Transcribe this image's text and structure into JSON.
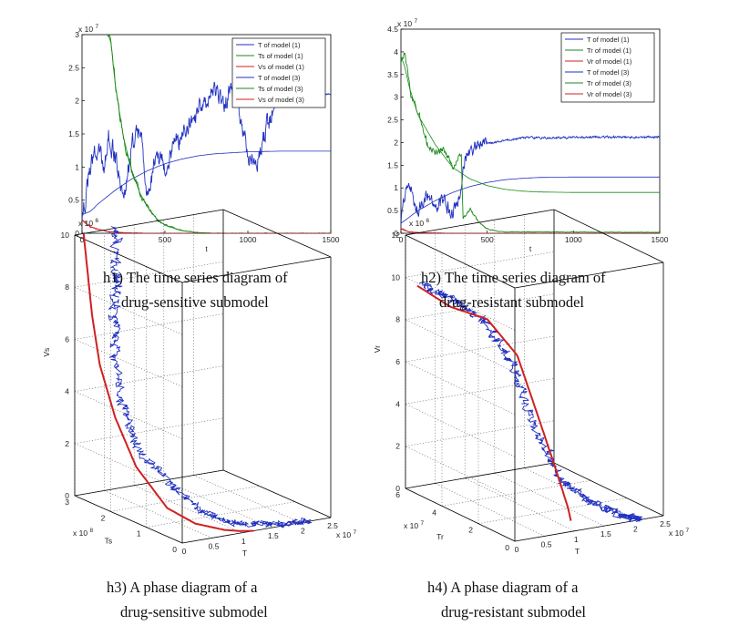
{
  "chart_data": [
    {
      "id": "h1",
      "type": "line",
      "exponent_label": "x 10",
      "exponent_power": "7",
      "xlabel": "t",
      "xlim": [
        0,
        1500
      ],
      "ylim": [
        0,
        3
      ],
      "xticks": [
        "0",
        "500",
        "1000",
        "1500"
      ],
      "yticks": [
        "0",
        "0.5",
        "1",
        "1.5",
        "2",
        "2.5",
        "3"
      ],
      "legend_position": "top-right",
      "legend": [
        "T of model (1)",
        "Ts of model (1)",
        "Vs of model (1)",
        "T of model (3)",
        "Ts of model (3)",
        "Vs of model (3)"
      ],
      "legend_colors": [
        "#2030c0",
        "#1a8a1a",
        "#d02020",
        "#2030c0",
        "#1a8a1a",
        "#d02020"
      ],
      "series": [
        {
          "name": "T of model (1)",
          "color": "#2030c0",
          "stochastic": false,
          "x": [
            0,
            50,
            100,
            200,
            300,
            400,
            500,
            600,
            700,
            800,
            1000,
            1200,
            1500
          ],
          "y": [
            0.28,
            0.33,
            0.45,
            0.65,
            0.82,
            0.95,
            1.05,
            1.12,
            1.17,
            1.2,
            1.23,
            1.24,
            1.24
          ]
        },
        {
          "name": "Ts of model (1)",
          "color": "#1a8a1a",
          "stochastic": false,
          "x": [
            0,
            170,
            200,
            250,
            300,
            350,
            400,
            450,
            500,
            600,
            700,
            800,
            1500
          ],
          "y": [
            3.5,
            3.0,
            2.25,
            1.45,
            0.95,
            0.6,
            0.38,
            0.22,
            0.12,
            0.04,
            0.01,
            0,
            0
          ]
        },
        {
          "name": "Vs of model (1)",
          "color": "#d02020",
          "stochastic": false,
          "x": [
            0,
            25,
            50,
            100,
            150,
            200,
            300,
            400,
            1500
          ],
          "y": [
            0.2,
            0.14,
            0.1,
            0.06,
            0.03,
            0.015,
            0.005,
            0,
            0
          ]
        },
        {
          "name": "T of model (3)",
          "color": "#2030c0",
          "stochastic": true,
          "x": [
            0,
            20,
            50,
            100,
            130,
            160,
            200,
            260,
            300,
            350,
            400,
            450,
            500,
            600,
            700,
            750,
            800,
            850,
            900,
            950,
            1000,
            1050,
            1100,
            1150,
            1200,
            1300,
            1500
          ],
          "y": [
            0.3,
            0.5,
            1.0,
            1.35,
            0.95,
            1.45,
            1.15,
            0.55,
            1.35,
            1.55,
            0.5,
            1.2,
            1.05,
            1.5,
            1.85,
            2.05,
            2.2,
            1.95,
            2.15,
            1.8,
            1.2,
            1.05,
            1.5,
            1.85,
            2.05,
            2.1,
            2.1
          ]
        },
        {
          "name": "Ts of model (3)",
          "color": "#1a8a1a",
          "stochastic": true,
          "x": [
            0,
            170,
            200,
            250,
            300,
            350,
            400,
            450,
            500,
            600,
            700,
            800,
            1500
          ],
          "y": [
            3.5,
            3.0,
            2.28,
            1.42,
            0.97,
            0.58,
            0.4,
            0.2,
            0.13,
            0.04,
            0.01,
            0,
            0
          ]
        },
        {
          "name": "Vs of model (3)",
          "color": "#d02020",
          "stochastic": true,
          "x": [
            0,
            25,
            50,
            100,
            150,
            200,
            300,
            400,
            1500
          ],
          "y": [
            0.21,
            0.15,
            0.1,
            0.06,
            0.03,
            0.015,
            0.005,
            0,
            0
          ]
        }
      ]
    },
    {
      "id": "h2",
      "type": "line",
      "exponent_label": "x 10",
      "exponent_power": "7",
      "xlabel": "t",
      "xlim": [
        0,
        1500
      ],
      "ylim": [
        0,
        4.5
      ],
      "xticks": [
        "0",
        "500",
        "1000",
        "1500"
      ],
      "yticks": [
        "0",
        "0.5",
        "1",
        "1.5",
        "2",
        "2.5",
        "3",
        "3.5",
        "4",
        "4.5"
      ],
      "legend_position": "top-right",
      "legend": [
        "T of model (1)",
        "Tr of model (1)",
        "Vr of model (1)",
        "T of model (3)",
        "Tr of model (3)",
        "Vr of model (3)"
      ],
      "legend_colors": [
        "#2030c0",
        "#1a8a1a",
        "#d02020",
        "#2030c0",
        "#1a8a1a",
        "#d02020"
      ],
      "series": [
        {
          "name": "T of model (1)",
          "color": "#2030c0",
          "stochastic": false,
          "x": [
            0,
            100,
            200,
            300,
            400,
            500,
            600,
            700,
            800,
            1000,
            1500
          ],
          "y": [
            0.22,
            0.5,
            0.72,
            0.9,
            1.03,
            1.12,
            1.18,
            1.21,
            1.23,
            1.24,
            1.24
          ]
        },
        {
          "name": "Tr of model (1)",
          "color": "#1a8a1a",
          "stochastic": false,
          "x": [
            0,
            20,
            50,
            100,
            200,
            300,
            400,
            500,
            600,
            700,
            800,
            1000,
            1500
          ],
          "y": [
            3.9,
            3.7,
            3.2,
            2.6,
            1.95,
            1.45,
            1.2,
            1.05,
            0.97,
            0.93,
            0.91,
            0.9,
            0.9
          ]
        },
        {
          "name": "Vr of model (1)",
          "color": "#d02020",
          "stochastic": false,
          "x": [
            0,
            20,
            50,
            100,
            200,
            300,
            1500
          ],
          "y": [
            0.1,
            0.06,
            0.03,
            0.015,
            0.005,
            0,
            0
          ]
        },
        {
          "name": "T of model (3)",
          "color": "#2030c0",
          "stochastic": true,
          "x": [
            0,
            20,
            50,
            80,
            100,
            150,
            200,
            250,
            300,
            350,
            360,
            400,
            500,
            600,
            700,
            800,
            1000,
            1200,
            1500
          ],
          "y": [
            0.3,
            0.8,
            1.1,
            0.6,
            0.45,
            0.9,
            0.55,
            0.75,
            0.35,
            1.0,
            1.55,
            1.85,
            1.97,
            2.05,
            2.1,
            2.11,
            2.12,
            2.12,
            2.12
          ]
        },
        {
          "name": "Tr of model (3)",
          "color": "#1a8a1a",
          "stochastic": true,
          "x": [
            0,
            20,
            60,
            100,
            150,
            200,
            250,
            300,
            350,
            360,
            400,
            450,
            500,
            550,
            600,
            1500
          ],
          "y": [
            3.8,
            4.0,
            3.0,
            2.7,
            2.0,
            1.75,
            1.85,
            1.5,
            1.7,
            0.3,
            0.55,
            0.25,
            0.1,
            0.05,
            0.03,
            0.02
          ]
        },
        {
          "name": "Vr of model (3)",
          "color": "#d02020",
          "stochastic": true,
          "x": [
            0,
            20,
            50,
            100,
            200,
            300,
            1500
          ],
          "y": [
            0.12,
            0.07,
            0.03,
            0.015,
            0.005,
            0,
            0
          ]
        }
      ]
    },
    {
      "id": "h3",
      "type": "line3d",
      "axis_labels": {
        "x": "T",
        "y": "Ts",
        "z": "Vs"
      },
      "exponents": {
        "x": "x 10",
        "x_power": "7",
        "y": "x 10",
        "y_power": "8",
        "z": "x 10",
        "z_power": "6"
      },
      "xlim": [
        0,
        2.5
      ],
      "ylim": [
        0,
        3
      ],
      "zlim": [
        0,
        10
      ],
      "xticks": [
        "0",
        "0.5",
        "1",
        "1.5",
        "2",
        "2.5"
      ],
      "yticks": [
        "0",
        "1",
        "2",
        "3"
      ],
      "zticks": [
        "0",
        "2",
        "4",
        "6",
        "8",
        "10"
      ],
      "series": [
        {
          "name": "deterministic",
          "color": "#d02020",
          "stochastic": false,
          "x": [
            1.2,
            1.0,
            0.8,
            0.55,
            0.35,
            0.25,
            0.2,
            0.18,
            0.17,
            0.16,
            0.15
          ],
          "y": [
            0.0,
            0.03,
            0.15,
            0.55,
            1.0,
            1.7,
            2.2,
            2.6,
            2.8,
            2.9,
            3.0
          ],
          "z": [
            0.0,
            0.05,
            0.1,
            0.2,
            0.6,
            1.8,
            3.4,
            5.2,
            7.0,
            8.5,
            10.0
          ]
        },
        {
          "name": "stochastic",
          "color": "#2030c0",
          "stochastic": true,
          "x": [
            2.2,
            1.8,
            1.4,
            1.0,
            0.7,
            0.5,
            0.3,
            0.25,
            0.3,
            0.45,
            0.6,
            0.7
          ],
          "y": [
            0.0,
            0.03,
            0.1,
            0.3,
            0.7,
            1.2,
            1.8,
            2.1,
            2.4,
            2.6,
            2.8,
            3.0
          ],
          "z": [
            0.0,
            0.05,
            0.1,
            0.2,
            0.6,
            1.4,
            2.5,
            4.0,
            6.0,
            7.5,
            8.5,
            10.0
          ]
        }
      ]
    },
    {
      "id": "h4",
      "type": "line3d",
      "axis_labels": {
        "x": "T",
        "y": "Tr",
        "z": "Vr"
      },
      "exponents": {
        "x": "x 10",
        "x_power": "7",
        "y": "x 10",
        "y_power": "7",
        "z": "x 10",
        "z_power": "6"
      },
      "xlim": [
        0,
        2.5
      ],
      "ylim": [
        0,
        6
      ],
      "zlim": [
        0,
        12
      ],
      "xticks": [
        "0",
        "0.5",
        "1",
        "1.5",
        "2",
        "2.5"
      ],
      "yticks": [
        "0",
        "2",
        "4",
        "6"
      ],
      "zticks": [
        "0",
        "2",
        "4",
        "6",
        "8",
        "10",
        "12"
      ],
      "series": [
        {
          "name": "deterministic",
          "color": "#d02020",
          "stochastic": false,
          "x": [
            0.2,
            0.45,
            0.7,
            0.9,
            1.05,
            1.15,
            1.2,
            1.22
          ],
          "y": [
            6.0,
            5.0,
            3.8,
            2.8,
            2.0,
            1.4,
            1.0,
            0.9
          ],
          "z": [
            9.5,
            8.8,
            8.6,
            7.2,
            4.2,
            2.0,
            0.6,
            0.0
          ]
        },
        {
          "name": "stochastic",
          "color": "#2030c0",
          "stochastic": true,
          "x": [
            0.3,
            0.55,
            0.8,
            0.95,
            1.1,
            1.3,
            1.6,
            1.9,
            2.1
          ],
          "y": [
            6.0,
            5.2,
            4.2,
            3.2,
            2.4,
            1.6,
            0.9,
            0.3,
            0.0
          ],
          "z": [
            9.5,
            9.0,
            8.2,
            6.5,
            3.5,
            1.5,
            0.6,
            0.2,
            0.0
          ]
        }
      ]
    }
  ],
  "captions": {
    "h1_line1": "h1) The time series diagram of",
    "h1_line2": "drug-sensitive submodel",
    "h2_line1": "h2) The time series diagram of",
    "h2_line2": "drug-resistant submodel",
    "h3_line1": "h3) A phase diagram of a",
    "h3_line2": "drug-sensitive submodel",
    "h4_line1": "h4) A phase diagram of a",
    "h4_line2": "drug-resistant submodel"
  }
}
